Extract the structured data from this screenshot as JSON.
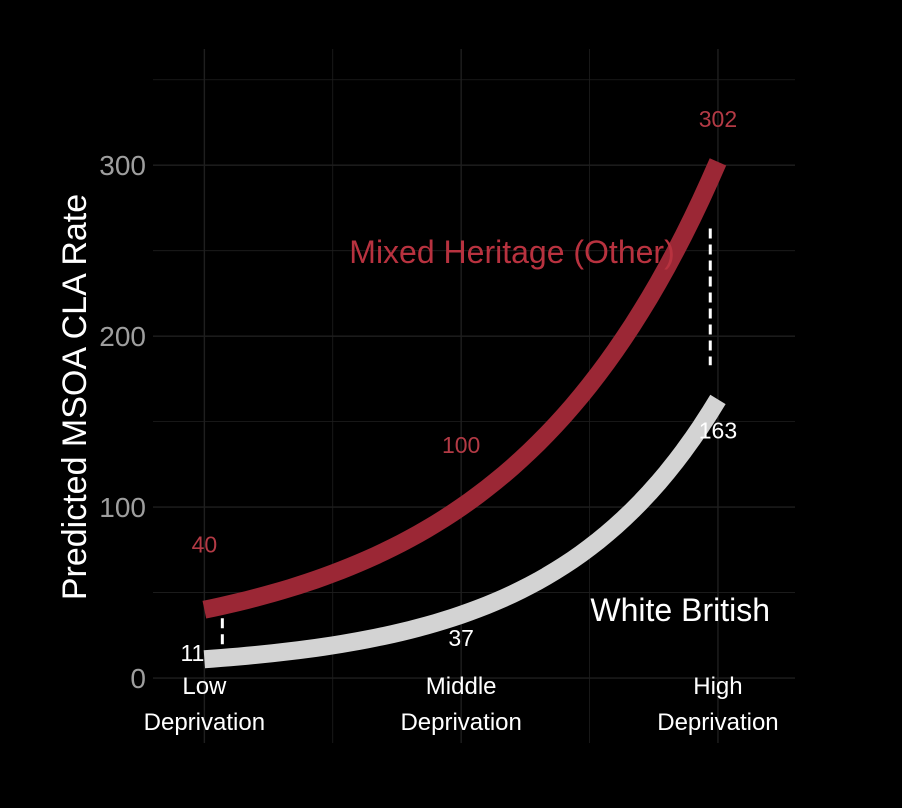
{
  "chart_data": {
    "type": "line",
    "title": "",
    "xlabel": "",
    "ylabel": "Predicted MSOA CLA Rate",
    "x": [
      0,
      1,
      2
    ],
    "x_tick_labels": [
      [
        "Low",
        "Deprivation"
      ],
      [
        "Middle",
        "Deprivation"
      ],
      [
        "High",
        "Deprivation"
      ]
    ],
    "ylim": [
      -38,
      368
    ],
    "y_ticks": [
      0,
      100,
      200,
      300
    ],
    "grid": true,
    "series": [
      {
        "name": "Mixed Heritage (Other)",
        "values": [
          40,
          100,
          302
        ],
        "labels": [
          "40",
          "100",
          "302"
        ],
        "color": "#9b2735"
      },
      {
        "name": "White British",
        "values": [
          11,
          37,
          163
        ],
        "labels": [
          "11",
          "37",
          "163"
        ],
        "color": "#d3d3d3"
      }
    ],
    "gap_markers": [
      "Low",
      "High"
    ],
    "background": "#000000",
    "grid_color": "#1f1f1f"
  }
}
